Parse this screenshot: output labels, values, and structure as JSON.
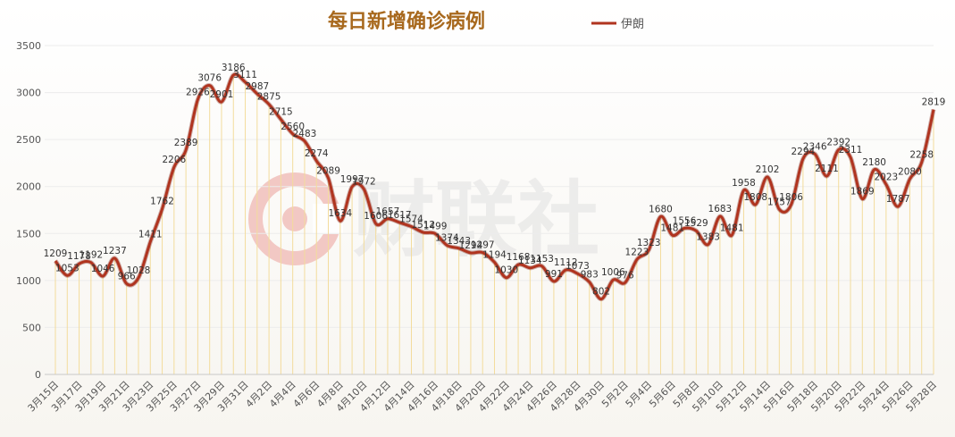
{
  "chart_data": {
    "type": "line",
    "title": "每日新增确诊病例",
    "legend": "伊朗",
    "watermark": "财联社",
    "y_ticks": [
      "0",
      "500",
      "1000",
      "1500",
      "2000",
      "2500",
      "3000",
      "3500"
    ],
    "ylim": [
      0,
      3500
    ],
    "x_tick_labels": [
      "3月15日",
      "3月17日",
      "3月19日",
      "3月21日",
      "3月23日",
      "3月25日",
      "3月27日",
      "3月29日",
      "3月31日",
      "4月2日",
      "4月4日",
      "4月6日",
      "4月8日",
      "4月10日",
      "4月12日",
      "4月14日",
      "4月16日",
      "4月18日",
      "4月20日",
      "4月22日",
      "4月24日",
      "4月26日",
      "4月28日",
      "4月30日",
      "5月2日",
      "5月4日",
      "5月6日",
      "5月8日",
      "5月10日",
      "5月12日",
      "5月14日",
      "5月16日",
      "5月18日",
      "5月20日",
      "5月22日",
      "5月24日",
      "5月26日",
      "5月28日"
    ],
    "categories": [
      "3月15日",
      "3月16日",
      "3月17日",
      "3月18日",
      "3月19日",
      "3月20日",
      "3月21日",
      "3月22日",
      "3月23日",
      "3月24日",
      "3月25日",
      "3月26日",
      "3月27日",
      "3月28日",
      "3月29日",
      "3月30日",
      "3月31日",
      "4月1日",
      "4月2日",
      "4月3日",
      "4月4日",
      "4月5日",
      "4月6日",
      "4月7日",
      "4月8日",
      "4月9日",
      "4月10日",
      "4月11日",
      "4月12日",
      "4月13日",
      "4月14日",
      "4月15日",
      "4月16日",
      "4月17日",
      "4月18日",
      "4月19日",
      "4月20日",
      "4月21日",
      "4月22日",
      "4月23日",
      "4月24日",
      "4月25日",
      "4月26日",
      "4月27日",
      "4月28日",
      "4月29日",
      "4月30日",
      "5月1日",
      "5月2日",
      "5月3日",
      "5月4日",
      "5月5日",
      "5月6日",
      "5月7日",
      "5月8日",
      "5月9日",
      "5月10日",
      "5月11日",
      "5月12日",
      "5月13日",
      "5月14日",
      "5月15日",
      "5月16日",
      "5月17日",
      "5月18日",
      "5月19日",
      "5月20日",
      "5月21日",
      "5月22日",
      "5月23日",
      "5月24日",
      "5月25日",
      "5月26日",
      "5月27日",
      "5月28日"
    ],
    "series": [
      {
        "name": "伊朗",
        "values": [
          1209,
          1053,
          1178,
          1192,
          1046,
          1237,
          966,
          1028,
          1411,
          1762,
          2206,
          2389,
          2926,
          3076,
          2901,
          3186,
          3111,
          2987,
          2875,
          2715,
          2560,
          2483,
          2274,
          2089,
          1634,
          1997,
          1972,
          1606,
          1657,
          1617,
          1574,
          1512,
          1499,
          1374,
          1343,
          1294,
          1297,
          1194,
          1030,
          1168,
          1134,
          1153,
          991,
          1112,
          1073,
          983,
          802,
          1006,
          976,
          1223,
          1323,
          1680,
          1481,
          1556,
          1529,
          1383,
          1683,
          1481,
          1958,
          1808,
          2102,
          1757,
          1806,
          2294,
          2346,
          2111,
          2392,
          2311,
          1869,
          2180,
          2023,
          1787,
          2080,
          2258,
          2819
        ]
      }
    ],
    "colors": {
      "line": "#b0341f",
      "title": "#a8691e",
      "droplines": "#f3dc9c",
      "axis": "#c8c8c8",
      "watermark": "#e06b63"
    }
  }
}
